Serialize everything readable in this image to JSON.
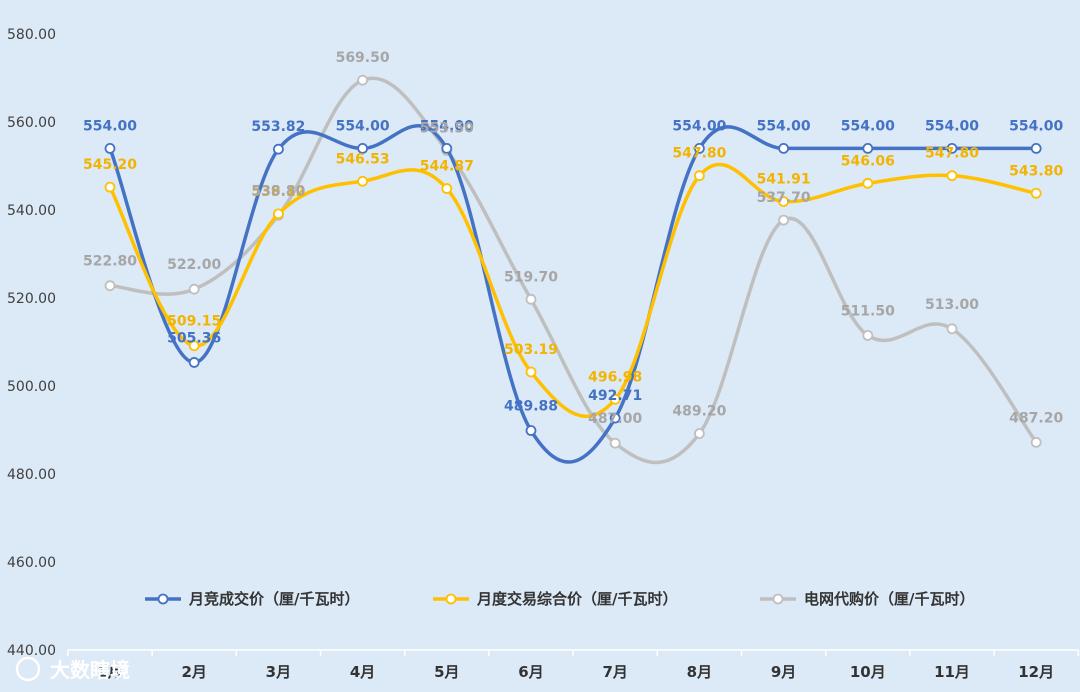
{
  "chart_data": {
    "type": "line",
    "categories": [
      "1月",
      "2月",
      "3月",
      "4月",
      "5月",
      "6月",
      "7月",
      "8月",
      "9月",
      "10月",
      "11月",
      "12月"
    ],
    "ylim": [
      440,
      580
    ],
    "yticks": [
      "440.00",
      "460.00",
      "480.00",
      "500.00",
      "520.00",
      "540.00",
      "560.00",
      "580.00"
    ],
    "ytick_values": [
      440,
      460,
      480,
      500,
      520,
      540,
      560,
      580
    ],
    "grid": "vertical separators",
    "legend_position": "bottom",
    "series": [
      {
        "name": "月竞成交价（厘/千瓦时）",
        "color": "#4472c4",
        "values": [
          554.0,
          505.36,
          553.82,
          554.0,
          554.0,
          489.88,
          492.71,
          554.0,
          554.0,
          554.0,
          554.0,
          554.0
        ],
        "labels": [
          "554.00",
          "505.36",
          "553.82",
          "554.00",
          "554.00",
          "489.88",
          "492.71",
          "554.00",
          "554.00",
          "554.00",
          "554.00",
          "554.00"
        ]
      },
      {
        "name": "月度交易综合价（厘/千瓦时）",
        "color": "#ffc000",
        "values": [
          545.2,
          509.15,
          539.12,
          546.53,
          544.87,
          503.19,
          496.98,
          547.8,
          541.91,
          546.06,
          547.8,
          543.8
        ],
        "labels": [
          "545.20",
          "509.15",
          "539.12",
          "546.53",
          "544.87",
          "503.19",
          "496.98",
          "547.80",
          "541.91",
          "546.06",
          "547.80",
          "543.80"
        ]
      },
      {
        "name": "电网代购价（厘/千瓦时）",
        "color": "#bfbfbf",
        "values": [
          522.8,
          522.0,
          538.8,
          569.5,
          553.5,
          519.7,
          487.0,
          489.2,
          537.7,
          511.5,
          513.0,
          487.2
        ],
        "labels": [
          "522.80",
          "522.00",
          "538.80",
          "569.50",
          "553.50",
          "519.70",
          "487.00",
          "489.20",
          "537.70",
          "511.50",
          "513.00",
          "487.20"
        ]
      }
    ]
  },
  "watermark": {
    "text": "大数瞎境"
  }
}
